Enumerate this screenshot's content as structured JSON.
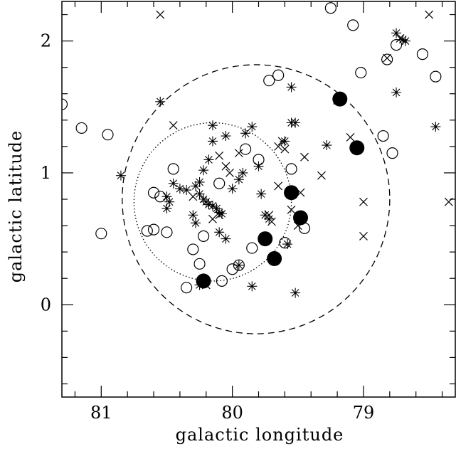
{
  "chart_data": {
    "type": "scatter",
    "xlabel": "galactic longitude",
    "ylabel": "galactic latitude",
    "xlim": [
      81.3,
      78.3
    ],
    "ylim": [
      -0.7,
      2.3
    ],
    "x_ticks": [
      "81",
      "80",
      "79"
    ],
    "x_tick_values": [
      81,
      80,
      79
    ],
    "y_ticks": [
      "0",
      "1",
      "2"
    ],
    "y_tick_values": [
      0,
      1,
      2
    ],
    "grid": false,
    "series": [
      {
        "marker": "open-circle",
        "points": [
          [
            81.3,
            1.52
          ],
          [
            81.15,
            1.34
          ],
          [
            80.95,
            1.29
          ],
          [
            81.0,
            0.54
          ],
          [
            80.6,
            0.85
          ],
          [
            80.55,
            0.82
          ],
          [
            80.45,
            1.03
          ],
          [
            80.65,
            0.56
          ],
          [
            80.6,
            0.57
          ],
          [
            80.5,
            0.55
          ],
          [
            80.3,
            0.42
          ],
          [
            80.25,
            0.31
          ],
          [
            80.35,
            0.13
          ],
          [
            80.22,
            0.52
          ],
          [
            80.1,
            0.92
          ],
          [
            79.95,
            0.3
          ],
          [
            80.0,
            0.27
          ],
          [
            80.08,
            0.18
          ],
          [
            79.9,
            1.18
          ],
          [
            79.8,
            1.1
          ],
          [
            79.72,
            1.7
          ],
          [
            79.65,
            1.74
          ],
          [
            79.55,
            1.03
          ],
          [
            79.85,
            0.43
          ],
          [
            79.6,
            0.47
          ],
          [
            79.45,
            0.58
          ],
          [
            79.25,
            2.25
          ],
          [
            79.08,
            2.12
          ],
          [
            79.02,
            1.76
          ],
          [
            78.82,
            1.86
          ],
          [
            78.75,
            1.97
          ],
          [
            78.85,
            1.28
          ],
          [
            78.78,
            1.15
          ],
          [
            78.55,
            1.9
          ],
          [
            78.45,
            1.73
          ],
          [
            78.5,
            2.35
          ]
        ]
      },
      {
        "marker": "filled-circle",
        "points": [
          [
            79.18,
            1.56
          ],
          [
            79.05,
            1.19
          ],
          [
            79.55,
            0.85
          ],
          [
            79.48,
            0.66
          ],
          [
            79.75,
            0.5
          ],
          [
            79.68,
            0.35
          ],
          [
            80.22,
            0.18
          ]
        ]
      },
      {
        "marker": "asterisk",
        "points": [
          [
            80.85,
            0.98
          ],
          [
            80.55,
            1.54
          ],
          [
            80.5,
            0.82
          ],
          [
            80.48,
            0.78
          ],
          [
            80.5,
            0.73
          ],
          [
            80.45,
            0.92
          ],
          [
            80.4,
            0.88
          ],
          [
            80.35,
            0.87
          ],
          [
            80.25,
            0.93
          ],
          [
            80.28,
            0.9
          ],
          [
            80.25,
            0.84
          ],
          [
            80.22,
            0.8
          ],
          [
            80.2,
            0.78
          ],
          [
            80.18,
            0.76
          ],
          [
            80.15,
            0.75
          ],
          [
            80.12,
            0.73
          ],
          [
            80.1,
            0.7
          ],
          [
            80.08,
            0.69
          ],
          [
            80.22,
            1.02
          ],
          [
            80.18,
            1.1
          ],
          [
            80.15,
            1.24
          ],
          [
            80.15,
            1.36
          ],
          [
            80.05,
            1.28
          ],
          [
            80.1,
            0.55
          ],
          [
            80.05,
            0.5
          ],
          [
            80.0,
            0.88
          ],
          [
            79.95,
            0.95
          ],
          [
            79.92,
            1.0
          ],
          [
            80.3,
            0.68
          ],
          [
            80.28,
            0.62
          ],
          [
            80.25,
            0.15
          ],
          [
            79.95,
            0.3
          ],
          [
            79.85,
            0.14
          ],
          [
            79.9,
            1.3
          ],
          [
            79.85,
            1.35
          ],
          [
            79.8,
            1.05
          ],
          [
            79.6,
            1.24
          ],
          [
            79.55,
            1.65
          ],
          [
            79.55,
            1.38
          ],
          [
            79.52,
            1.38
          ],
          [
            79.78,
            0.84
          ],
          [
            79.75,
            0.68
          ],
          [
            79.72,
            0.65
          ],
          [
            79.58,
            0.46
          ],
          [
            79.52,
            0.09
          ],
          [
            79.28,
            1.21
          ],
          [
            78.75,
            1.61
          ],
          [
            78.75,
            2.06
          ],
          [
            78.7,
            2.01
          ],
          [
            78.68,
            2.0
          ],
          [
            78.45,
            1.35
          ]
        ]
      },
      {
        "marker": "cross",
        "points": [
          [
            80.55,
            2.2
          ],
          [
            80.45,
            1.36
          ],
          [
            80.3,
            0.82
          ],
          [
            80.1,
            1.13
          ],
          [
            80.15,
            0.65
          ],
          [
            80.05,
            1.05
          ],
          [
            80.02,
            1.0
          ],
          [
            79.95,
            1.15
          ],
          [
            79.72,
            0.68
          ],
          [
            79.7,
            0.63
          ],
          [
            79.65,
            1.2
          ],
          [
            79.62,
            1.24
          ],
          [
            79.6,
            1.18
          ],
          [
            79.65,
            0.9
          ],
          [
            79.55,
            0.85
          ],
          [
            79.48,
            0.85
          ],
          [
            79.45,
            1.12
          ],
          [
            79.1,
            1.27
          ],
          [
            79.05,
            1.2
          ],
          [
            79.0,
            0.78
          ],
          [
            79.0,
            0.52
          ],
          [
            79.32,
            0.98
          ],
          [
            79.55,
            0.72
          ],
          [
            79.5,
            0.6
          ],
          [
            79.2,
            1.55
          ],
          [
            78.82,
            1.87
          ],
          [
            78.72,
            2.02
          ],
          [
            78.5,
            2.2
          ],
          [
            78.35,
            0.78
          ],
          [
            80.2,
            0.15
          ],
          [
            80.1,
            0.68
          ]
        ]
      }
    ],
    "annotations": [
      {
        "shape": "circle",
        "style": "dashed",
        "center": [
          79.82,
          0.8
        ],
        "radius": 1.02
      },
      {
        "shape": "circle",
        "style": "dotted",
        "center": [
          80.15,
          0.78
        ],
        "radius": 0.6
      }
    ]
  }
}
